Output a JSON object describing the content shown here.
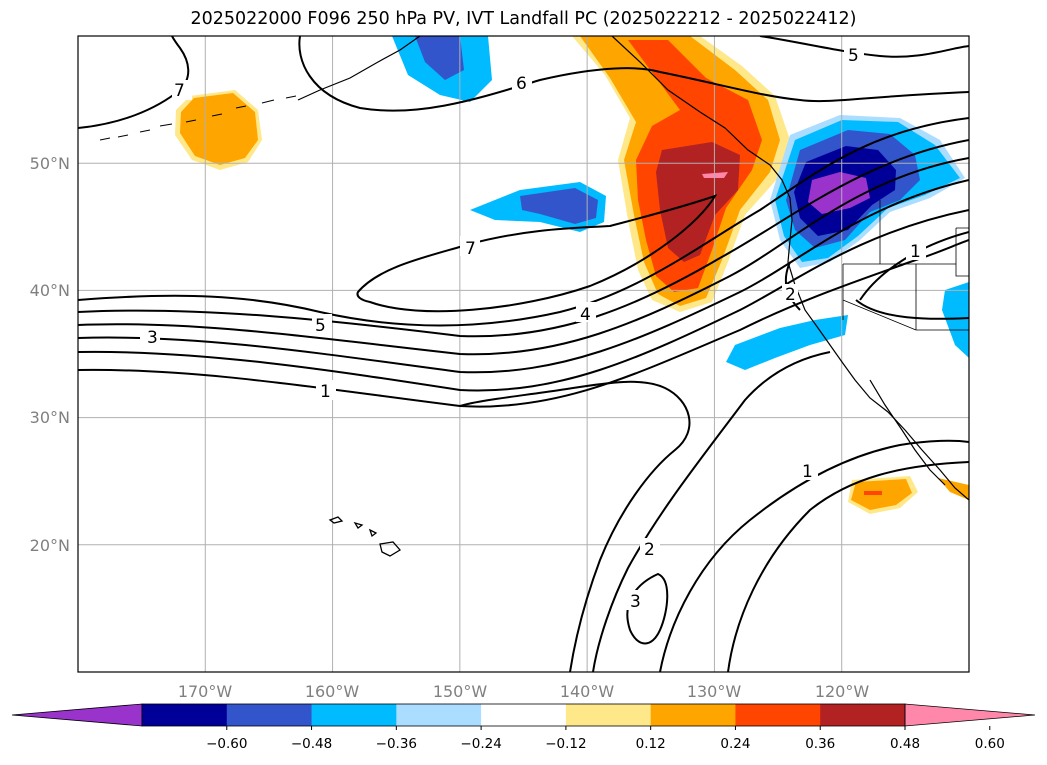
{
  "title": "2025022000 F096 250 hPa PV, IVT Landfall PC (2025022212 - 2025022412)",
  "map": {
    "projection": "lat-lon",
    "extent": {
      "lon": [
        -180,
        -110
      ],
      "lat": [
        10,
        60
      ]
    },
    "grid": true,
    "lat_ticks": [
      "50°N",
      "40°N",
      "30°N",
      "20°N"
    ],
    "lon_ticks": [
      "170°W",
      "160°W",
      "150°W",
      "140°W",
      "130°W",
      "120°W"
    ],
    "contour_color": "#000000",
    "contour_labels": [
      "7",
      "6",
      "5",
      "7",
      "5",
      "3",
      "4",
      "1",
      "1",
      "2",
      "2",
      "1",
      "3"
    ]
  },
  "colorbar": {
    "extend": "both",
    "colors": [
      "#9933cc",
      "#000099",
      "#3355cc",
      "#00bbff",
      "#aaddff",
      "#ffffff",
      "#ffe88a",
      "#ffa500",
      "#ff4500",
      "#b22222",
      "#ff88aa"
    ],
    "tick_labels": [
      "−0.60",
      "−0.48",
      "−0.36",
      "−0.24",
      "−0.12",
      "0.12",
      "0.24",
      "0.36",
      "0.48",
      "0.60"
    ]
  },
  "chart_data": {
    "type": "heatmap",
    "title": "2025022000 F096 250 hPa PV, IVT Landfall PC (2025022212 - 2025022412)",
    "shading_levels": [
      -0.6,
      -0.48,
      -0.36,
      -0.24,
      -0.12,
      0.12,
      0.24,
      0.36,
      0.48,
      0.6
    ],
    "contour_levels": [
      1,
      2,
      3,
      4,
      5,
      6,
      7
    ],
    "xlim": [
      -180,
      -110
    ],
    "ylim": [
      10,
      60
    ]
  }
}
